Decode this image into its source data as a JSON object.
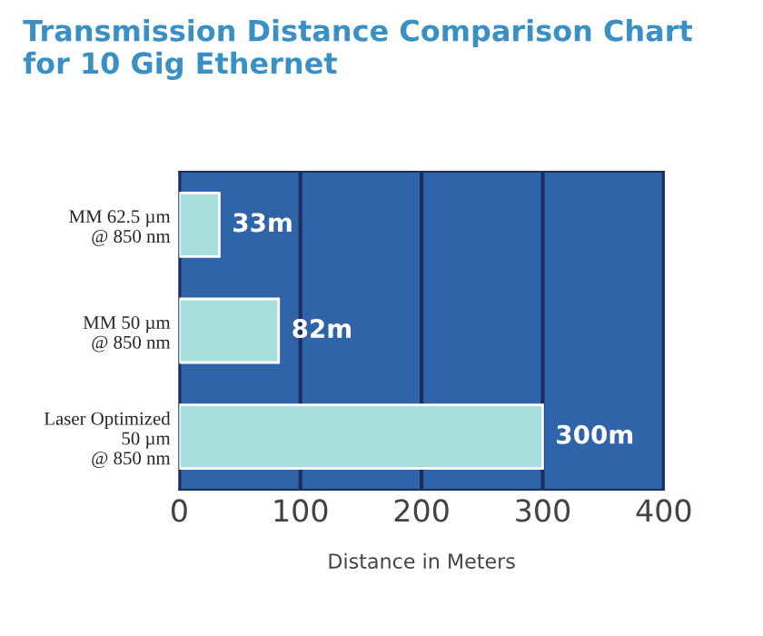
{
  "chart_data": {
    "type": "bar",
    "orientation": "horizontal",
    "title": "Transmission Distance Comparison Chart\nfor 10 Gig Ethernet",
    "xlabel": "Distance in Meters",
    "categories": [
      "MM 62.5 µm\n@ 850 nm",
      "MM 50 µm\n@ 850 nm",
      "Laser Optimized\n50 µm\n@ 850 nm"
    ],
    "values": [
      33,
      82,
      300
    ],
    "value_labels": [
      "33m",
      "82m",
      "300m"
    ],
    "color": "#a8dedc",
    "xlim": [
      0,
      400
    ],
    "xticks": [
      0,
      100,
      200,
      300,
      400
    ],
    "grid": "x"
  }
}
